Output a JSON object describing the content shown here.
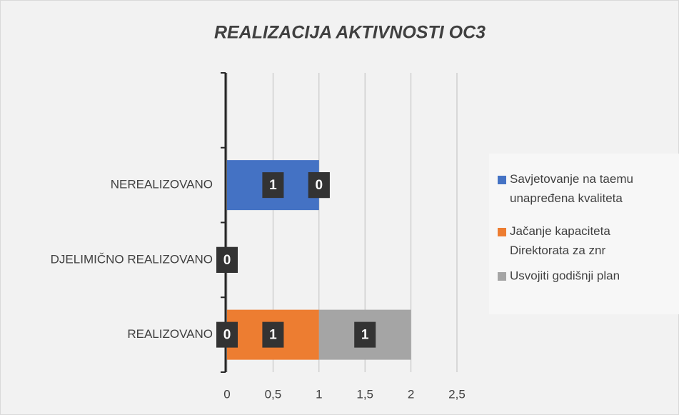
{
  "chart_data": {
    "type": "stacked-barh",
    "title": "REALIZACIJA AKTIVNOSTI OC3",
    "categories": [
      "REALIZOVANO",
      "DJELIMIČNO REALIZOVANO",
      "NEREALIZOVANO",
      null
    ],
    "series": [
      {
        "name": "Savjetovanje na taemu unapređena kvaliteta",
        "color": "#4472c4",
        "values": [
          0,
          0,
          1,
          null
        ]
      },
      {
        "name": "Jačanje kapaciteta Direktorata za znr",
        "color": "#ed7d31",
        "values": [
          1,
          0,
          0,
          null
        ]
      },
      {
        "name": "Usvojiti godišnji plan",
        "color": "#a5a5a5",
        "values": [
          1,
          0,
          0,
          null
        ]
      }
    ],
    "xlim": [
      0,
      2.5
    ],
    "xticks": [
      0,
      {
        "value": 0.5,
        "label": "0,5"
      },
      1,
      {
        "value": 1.5,
        "label": "1,5"
      },
      2,
      {
        "value": 2.5,
        "label": "2,5"
      }
    ],
    "grid": true,
    "legend": "right"
  }
}
